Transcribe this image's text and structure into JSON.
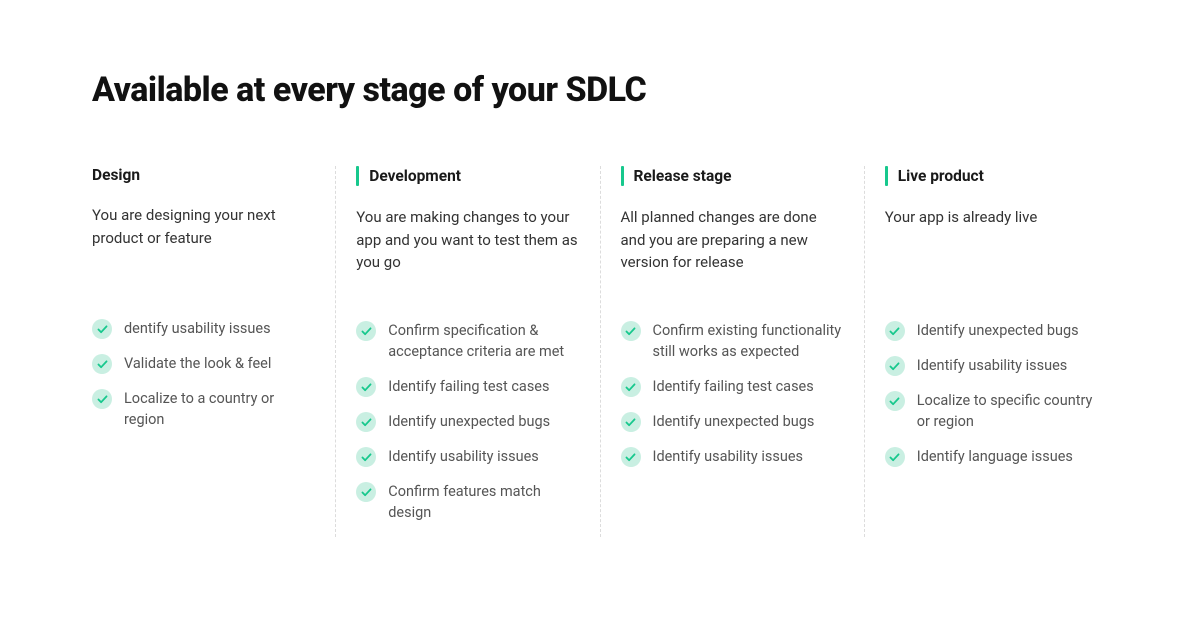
{
  "heading": "Available at every stage of your SDLC",
  "accent_color": "#17c88d",
  "check_bg_color": "#c9efe2",
  "check_stroke_color": "#17c88d",
  "divider_color": "#dcdcdc",
  "text_color": "#1a1a1a",
  "item_text_color": "#555555",
  "heading_fontsize": 34,
  "column_title_fontsize": 15.5,
  "desc_fontsize": 15,
  "item_fontsize": 14.5,
  "columns": [
    {
      "title": "Design",
      "desc": "You are designing your next product or feature",
      "items": [
        "dentify usability issues",
        "Validate the look & feel",
        "Localize to a country or region"
      ]
    },
    {
      "title": "Development",
      "desc": "You are making changes to your app and you want to test them as you go",
      "items": [
        "Confirm specification & acceptance criteria are met",
        "Identify failing test cases",
        "Identify unexpected bugs",
        "Identify usability issues",
        "Confirm features match design"
      ]
    },
    {
      "title": "Release stage",
      "desc": "All planned changes are done and you are preparing a new version for release",
      "items": [
        "Confirm existing functionality still works as expected",
        "Identify failing test cases",
        "Identify unexpected bugs",
        "Identify usability issues"
      ]
    },
    {
      "title": "Live product",
      "desc": "Your app is already live",
      "items": [
        "Identify unexpected bugs",
        "Identify usability issues",
        "Localize to specific country or region",
        "Identify language issues"
      ]
    }
  ]
}
